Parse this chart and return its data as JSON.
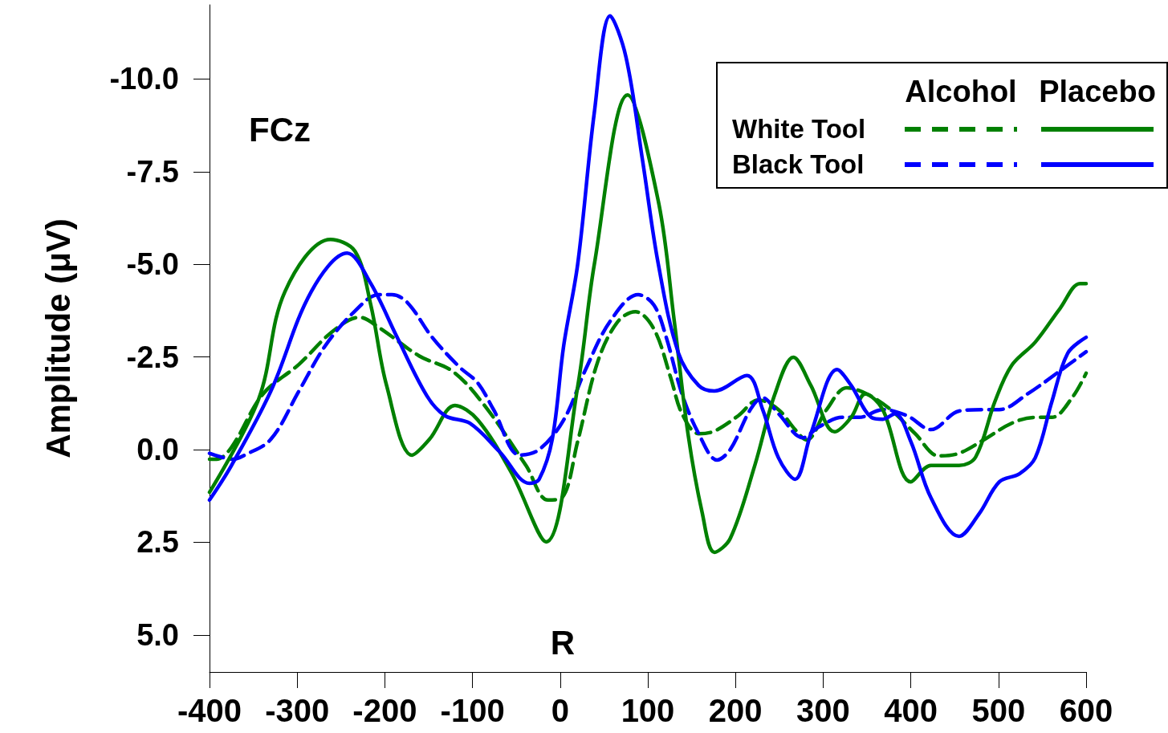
{
  "chart_data": {
    "type": "line",
    "ylabel": "Amplitude (μV)",
    "xlim": [
      -400,
      600
    ],
    "xticks": [
      -400,
      -300,
      -200,
      -100,
      0,
      100,
      200,
      300,
      400,
      500,
      600
    ],
    "ylim": [
      6,
      -12
    ],
    "yticks": [
      {
        "value": -10,
        "label": "-10.0"
      },
      {
        "value": -7.5,
        "label": "-7.5"
      },
      {
        "value": -5,
        "label": "-5.0"
      },
      {
        "value": -2.5,
        "label": "-2.5"
      },
      {
        "value": 0,
        "label": "0.0"
      },
      {
        "value": 2.5,
        "label": "2.5"
      },
      {
        "value": 5,
        "label": "5.0"
      }
    ],
    "legend": "top right",
    "marker": "none",
    "annotations": [
      "FCz",
      "R",
      "Alcohol",
      "Placebo"
    ],
    "series": [
      {
        "name": "White Tool",
        "color": "#008000",
        "line_style": "dashed",
        "x": [
          -400,
          -392,
          -375,
          -339,
          -298,
          -259,
          -229,
          -207,
          -161,
          -122,
          -85,
          -39,
          -14,
          2,
          20,
          43,
          66,
          86,
          107,
          126,
          139,
          158,
          176,
          203,
          226,
          249,
          268,
          281,
          304,
          327,
          350,
          377,
          405,
          432,
          455,
          483,
          515,
          542,
          561,
          584,
          600
        ],
        "values": [
          0.26,
          0.26,
          -0.06,
          -1.5,
          -2.3,
          -3.2,
          -3.57,
          -3.3,
          -2.53,
          -2.1,
          -1.15,
          0.43,
          1.36,
          1.3,
          -0.22,
          -2.38,
          -3.46,
          -3.72,
          -3.25,
          -1.95,
          -0.97,
          -0.43,
          -0.5,
          -0.91,
          -1.34,
          -1.08,
          -0.54,
          -0.26,
          -1.08,
          -1.67,
          -1.5,
          -1.08,
          -0.43,
          0.17,
          0.1,
          -0.26,
          -0.71,
          -0.87,
          -0.87,
          -1.4,
          -2.06
        ]
      },
      {
        "name": "Black Tool",
        "color": "#0000ff",
        "line_style": "dashed",
        "x": [
          -400,
          -373,
          -360,
          -330,
          -298,
          -268,
          -234,
          -207,
          -192,
          -174,
          -146,
          -115,
          -94,
          -76,
          -46,
          -24,
          4,
          29,
          57,
          89,
          107,
          121,
          139,
          158,
          179,
          194,
          217,
          231,
          249,
          277,
          295,
          322,
          341,
          368,
          396,
          423,
          455,
          483,
          501,
          533,
          570,
          600
        ],
        "values": [
          0.1,
          0.26,
          0.15,
          -0.28,
          -1.58,
          -2.8,
          -3.74,
          -4.18,
          -4.18,
          -3.96,
          -3.03,
          -2.23,
          -1.8,
          -1.08,
          0.15,
          0,
          -0.8,
          -2.16,
          -3.46,
          -4.18,
          -3.9,
          -3.03,
          -1.5,
          -0.43,
          0.28,
          0,
          -1.08,
          -1.4,
          -0.97,
          -0.32,
          -0.61,
          -0.87,
          -0.87,
          -1.08,
          -0.91,
          -0.54,
          -1.04,
          -1.08,
          -1.08,
          -1.5,
          -2.12,
          -2.64
        ]
      },
      {
        "color": "#008000",
        "line_style": "solid",
        "x": [
          -400,
          -344,
          -314,
          -262,
          -234,
          -216,
          -198,
          -169,
          -149,
          -120,
          -94,
          -55,
          -16,
          20,
          39,
          77,
          112,
          130,
          146,
          162,
          176,
          194,
          222,
          245,
          266,
          286,
          313,
          332,
          348,
          368,
          400,
          423,
          455,
          474,
          496,
          515,
          542,
          570,
          593,
          600
        ],
        "values": [
          1.15,
          -1.36,
          -4.26,
          -5.67,
          -5.35,
          -3.9,
          -1.73,
          0.15,
          -0.28,
          -1.19,
          -0.8,
          0.65,
          2.49,
          -1.7,
          -5.0,
          -9.57,
          -6.7,
          -3.5,
          -0.4,
          1.7,
          2.77,
          2.4,
          0.43,
          -1.5,
          -2.49,
          -1.73,
          -0.48,
          -0.87,
          -1.5,
          -1.08,
          0.87,
          0.43,
          0.43,
          0.2,
          -1.3,
          -2.27,
          -2.9,
          -3.8,
          -4.48,
          -4.48
        ]
      },
      {
        "color": "#0000ff",
        "line_style": "solid",
        "x": [
          -400,
          -375,
          -330,
          -284,
          -243,
          -216,
          -186,
          -152,
          -131,
          -103,
          -69,
          -35,
          -24,
          -9,
          4,
          20,
          39,
          57,
          75,
          94,
          112,
          135,
          158,
          176,
          213,
          231,
          249,
          268,
          286,
          316,
          332,
          355,
          368,
          382,
          400,
          423,
          455,
          478,
          501,
          524,
          542,
          561,
          579,
          600
        ],
        "values": [
          1.36,
          0.43,
          -1.58,
          -4.26,
          -5.3,
          -4.48,
          -3.03,
          -1.45,
          -0.91,
          -0.71,
          0.06,
          0.91,
          0.8,
          -0.28,
          -2.8,
          -5.0,
          -9.1,
          -11.7,
          -10.6,
          -7.8,
          -5.0,
          -2.6,
          -1.73,
          -1.58,
          -2.0,
          -1.08,
          0.22,
          0.8,
          -0.43,
          -2.16,
          -1.73,
          -0.87,
          -0.82,
          -0.97,
          -0.22,
          1.3,
          2.34,
          1.73,
          0.87,
          0.65,
          0.22,
          -1.3,
          -2.6,
          -3.03
        ]
      }
    ]
  }
}
